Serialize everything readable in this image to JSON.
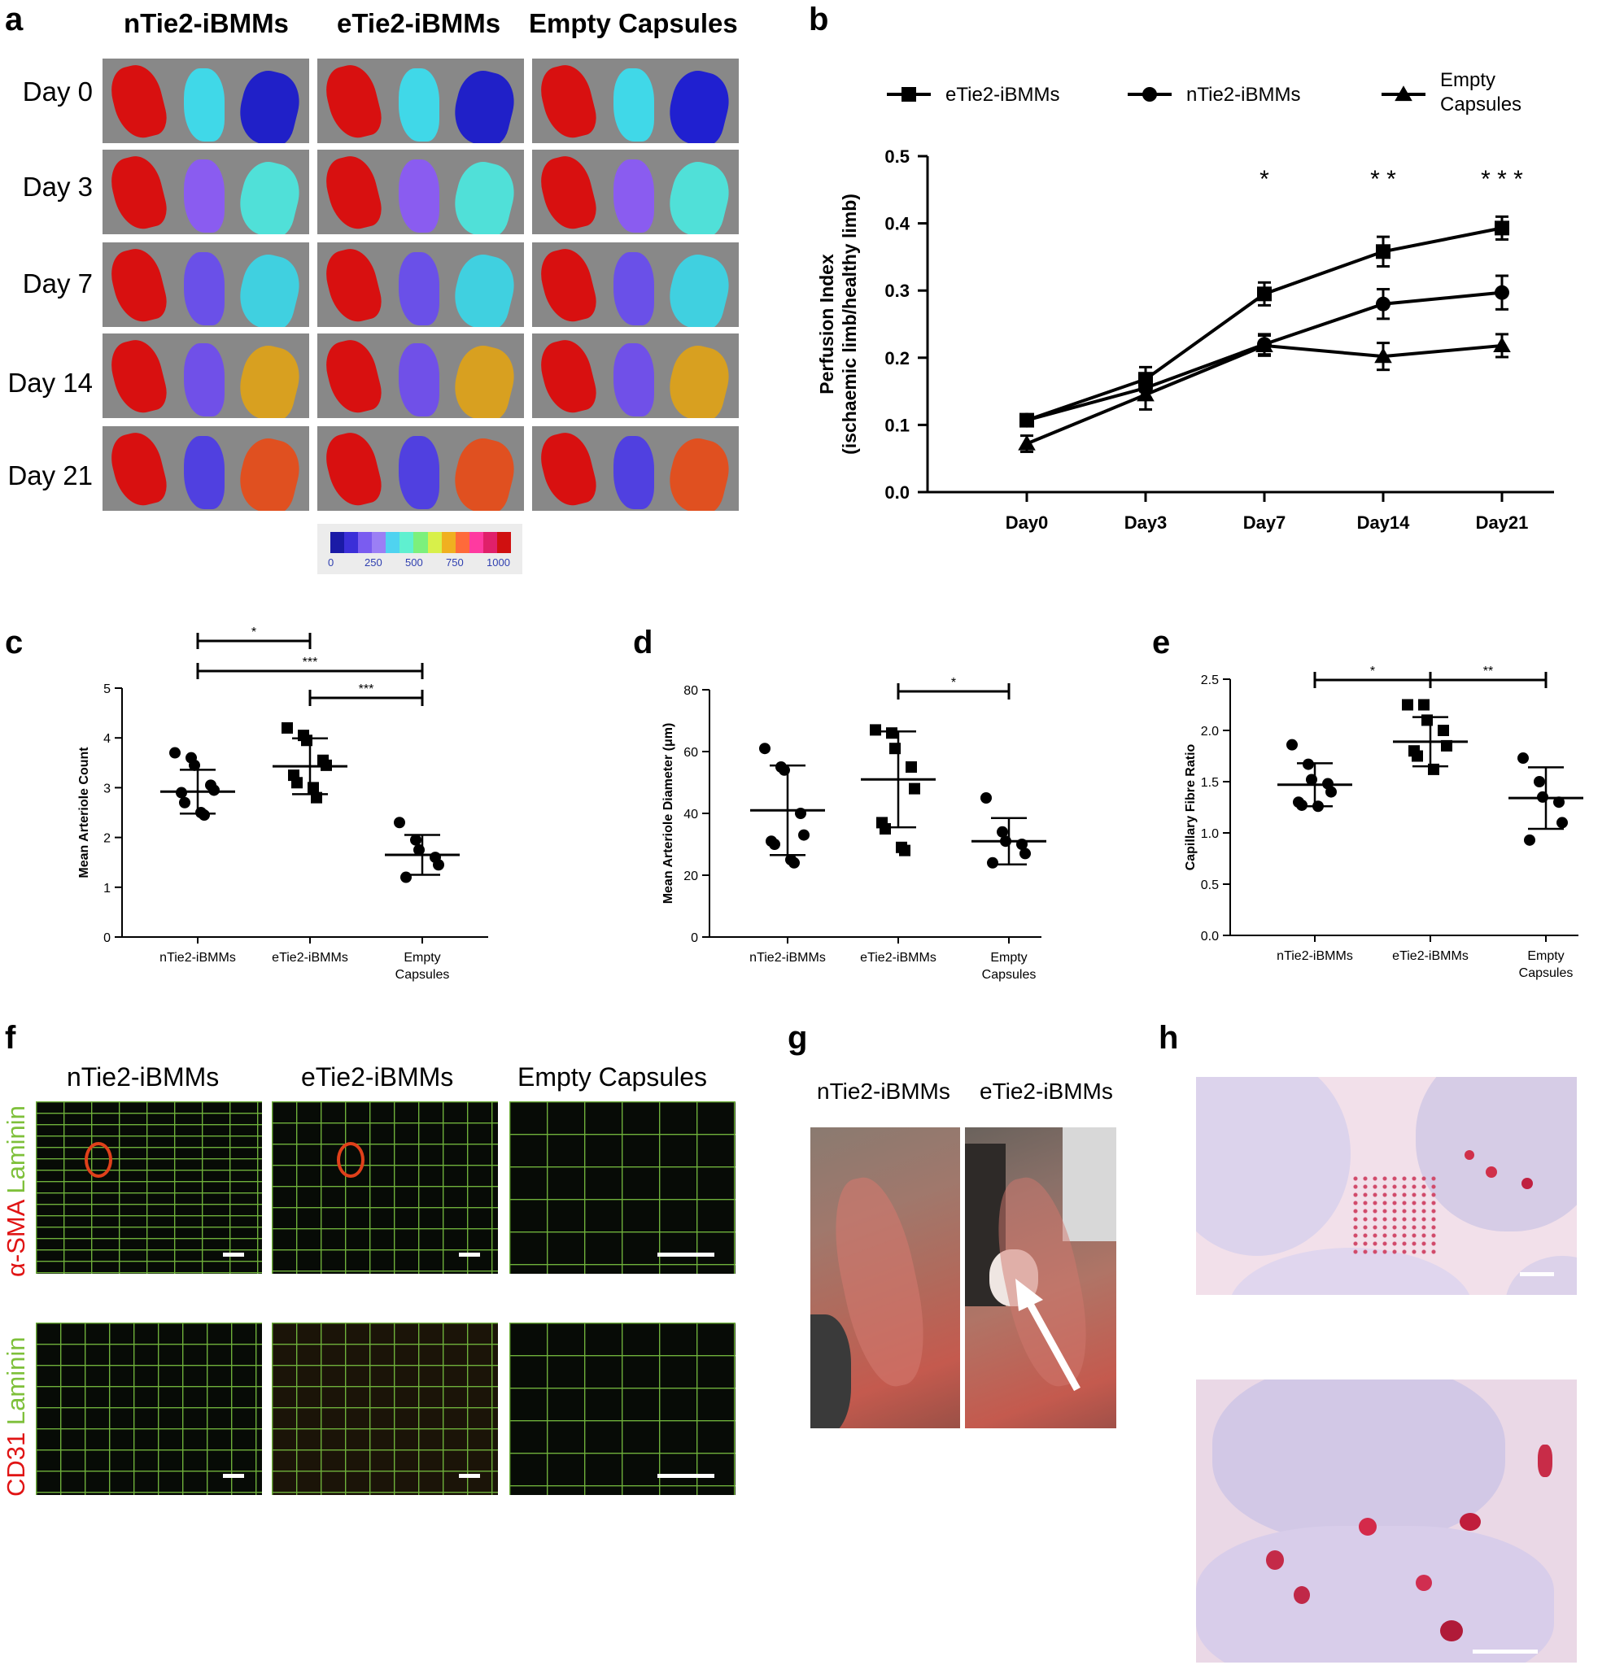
{
  "panel_a": {
    "letter": "a",
    "columns": [
      "nTie2-iBMMs",
      "eTie2-iBMMs",
      "Empty Capsules"
    ],
    "rows": [
      "Day 0",
      "Day 3",
      "Day 7",
      "Day 14",
      "Day 21"
    ],
    "colorbar_ticks": [
      "0",
      "250",
      "500",
      "750",
      "1000"
    ],
    "colorbar_colors": [
      "#1a1aa6",
      "#3b2fd8",
      "#7a5cf0",
      "#9b7ff5",
      "#4fd3f0",
      "#5ff0d0",
      "#7cf07c",
      "#d8f04a",
      "#f0b020",
      "#ff6a3a",
      "#ff3aa0",
      "#e0206a",
      "#d01010"
    ]
  },
  "panel_b": {
    "letter": "b",
    "chart_data": {
      "type": "line",
      "categories": [
        "Day0",
        "Day3",
        "Day7",
        "Day14",
        "Day21"
      ],
      "ylabel": "Perfusion Index\n(ischaemic limb/healthy limb)",
      "ylim": [
        0.0,
        0.5
      ],
      "yticks": [
        "0.0",
        "0.1",
        "0.2",
        "0.3",
        "0.4",
        "0.5"
      ],
      "series": [
        {
          "name": "eTie2-iBMMs",
          "marker": "square",
          "values": [
            0.107,
            0.168,
            0.295,
            0.358,
            0.393
          ],
          "errors": [
            0.008,
            0.018,
            0.017,
            0.022,
            0.017
          ]
        },
        {
          "name": "nTie2-iBMMs",
          "marker": "circle",
          "values": [
            0.107,
            0.155,
            0.22,
            0.28,
            0.297
          ],
          "errors": [
            0.008,
            0.015,
            0.015,
            0.022,
            0.025
          ]
        },
        {
          "name": "Empty Capsules",
          "marker": "triangle",
          "values": [
            0.072,
            0.145,
            0.218,
            0.202,
            0.218
          ],
          "errors": [
            0.012,
            0.022,
            0.015,
            0.02,
            0.017
          ]
        }
      ],
      "significance": [
        {
          "category": "Day7",
          "label": "*"
        },
        {
          "category": "Day14",
          "label": "* *"
        },
        {
          "category": "Day21",
          "label": "* * *"
        }
      ],
      "legend": [
        "eTie2-iBMMs",
        "nTie2-iBMMs",
        "Empty\nCapsules"
      ]
    }
  },
  "panel_c": {
    "letter": "c",
    "chart_data": {
      "type": "scatter",
      "categories": [
        "nTie2-iBMMs",
        "eTie2-iBMMs",
        "Empty\nCapsules"
      ],
      "ylabel": "Mean Arteriole Count",
      "ylim": [
        0,
        5
      ],
      "yticks": [
        "0",
        "1",
        "2",
        "3",
        "4",
        "5"
      ],
      "groups": [
        {
          "marker": "circle",
          "mean": 2.92,
          "sd": 0.44,
          "points": [
            3.7,
            3.6,
            3.45,
            3.05,
            2.95,
            2.9,
            2.7,
            2.5,
            2.45
          ]
        },
        {
          "marker": "square",
          "mean": 3.43,
          "sd": 0.56,
          "points": [
            4.2,
            4.05,
            3.95,
            3.55,
            3.45,
            3.25,
            3.1,
            3.0,
            2.8
          ]
        },
        {
          "marker": "circle",
          "mean": 1.65,
          "sd": 0.4,
          "points": [
            2.3,
            1.95,
            1.75,
            1.6,
            1.45,
            1.2
          ]
        }
      ],
      "significance": [
        {
          "from": 0,
          "to": 1,
          "label": "*"
        },
        {
          "from": 0,
          "to": 2,
          "label": "***"
        },
        {
          "from": 1,
          "to": 2,
          "label": "***"
        }
      ]
    }
  },
  "panel_d": {
    "letter": "d",
    "chart_data": {
      "type": "scatter",
      "categories": [
        "nTie2-iBMMs",
        "eTie2-iBMMs",
        "Empty\nCapsules"
      ],
      "ylabel": "Mean Arteriole Diameter (μm)",
      "ylim": [
        0,
        80
      ],
      "yticks": [
        "0",
        "20",
        "40",
        "60",
        "80"
      ],
      "groups": [
        {
          "marker": "circle",
          "mean": 41,
          "sd": 14.5,
          "points": [
            61,
            55,
            54,
            40,
            33,
            31,
            30,
            25,
            24
          ]
        },
        {
          "marker": "square",
          "mean": 51,
          "sd": 15.5,
          "points": [
            67,
            66,
            61,
            55,
            48,
            37,
            35,
            29,
            28
          ]
        },
        {
          "marker": "circle",
          "mean": 31,
          "sd": 7.5,
          "points": [
            45,
            34,
            31,
            30,
            27,
            24
          ]
        }
      ],
      "significance": [
        {
          "from": 1,
          "to": 2,
          "label": "*"
        }
      ]
    }
  },
  "panel_e": {
    "letter": "e",
    "chart_data": {
      "type": "scatter",
      "categories": [
        "nTie2-iBMMs",
        "eTie2-iBMMs",
        "Empty\nCapsules"
      ],
      "ylabel": "Capillary Fibre Ratio",
      "ylim": [
        0.0,
        2.5
      ],
      "yticks": [
        "0.0",
        "0.5",
        "1.0",
        "1.5",
        "2.0",
        "2.5"
      ],
      "groups": [
        {
          "marker": "circle",
          "mean": 1.47,
          "sd": 0.21,
          "points": [
            1.86,
            1.67,
            1.52,
            1.48,
            1.4,
            1.3,
            1.27,
            1.26
          ]
        },
        {
          "marker": "square",
          "mean": 1.89,
          "sd": 0.24,
          "points": [
            2.25,
            2.25,
            2.1,
            2.0,
            1.85,
            1.8,
            1.75,
            1.62
          ]
        },
        {
          "marker": "circle",
          "mean": 1.34,
          "sd": 0.3,
          "points": [
            1.73,
            1.5,
            1.35,
            1.3,
            1.1,
            0.93
          ]
        }
      ],
      "significance": [
        {
          "from": 0,
          "to": 1,
          "label": "*"
        },
        {
          "from": 1,
          "to": 2,
          "label": "**"
        }
      ]
    }
  },
  "panel_f": {
    "letter": "f",
    "columns": [
      "nTie2-iBMMs",
      "eTie2-iBMMs",
      "Empty Capsules"
    ],
    "row1_label_red": "α-SMA",
    "row1_label_green": "Laminin",
    "row2_label_red": "CD31",
    "row2_label_green": "Laminin"
  },
  "panel_g": {
    "letter": "g",
    "columns": [
      "nTie2-iBMMs",
      "eTie2-iBMMs"
    ]
  },
  "panel_h": {
    "letter": "h"
  }
}
